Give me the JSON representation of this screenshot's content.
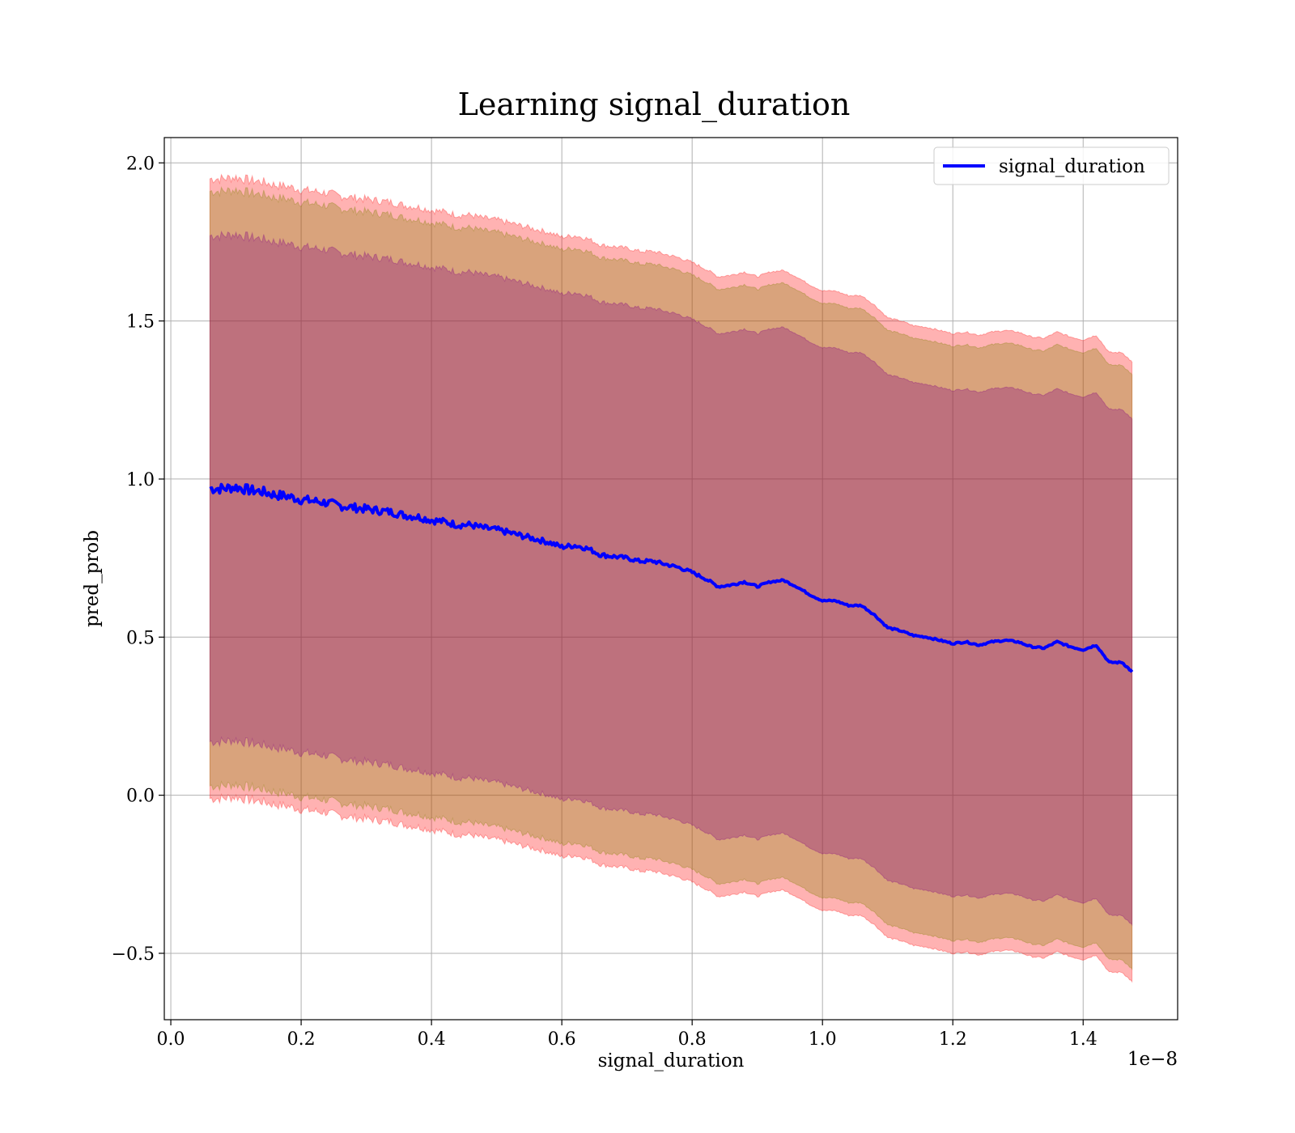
{
  "chart_data": {
    "type": "line",
    "title": "Learning signal_duration",
    "xlabel": "signal_duration",
    "ylabel": "pred_prob",
    "x_offset_text": "1e−8",
    "xlim": [
      -0.01,
      1.545
    ],
    "ylim": [
      -0.71,
      2.08
    ],
    "x_ticks": [
      0.0,
      0.2,
      0.4,
      0.6,
      0.8,
      1.0,
      1.2,
      1.4
    ],
    "x_tick_labels": [
      "0.0",
      "0.2",
      "0.4",
      "0.6",
      "0.8",
      "1.0",
      "1.2",
      "1.4"
    ],
    "y_ticks": [
      -0.5,
      0.0,
      0.5,
      1.0,
      1.5,
      2.0
    ],
    "y_tick_labels": [
      "−0.5",
      "0.0",
      "0.5",
      "1.0",
      "1.5",
      "2.0"
    ],
    "grid": true,
    "legend_position": "upper right",
    "colors": {
      "line": "#0000ff",
      "band_outer": "#ff0000",
      "band_middle": "#808000",
      "band_inner": "#800080"
    },
    "series": [
      {
        "name": "signal_duration",
        "x": [
          0.06,
          0.08,
          0.1,
          0.12,
          0.14,
          0.16,
          0.18,
          0.2,
          0.22,
          0.24,
          0.26,
          0.28,
          0.3,
          0.32,
          0.34,
          0.36,
          0.38,
          0.4,
          0.42,
          0.44,
          0.46,
          0.48,
          0.5,
          0.52,
          0.54,
          0.56,
          0.58,
          0.6,
          0.62,
          0.64,
          0.66,
          0.68,
          0.7,
          0.72,
          0.74,
          0.76,
          0.78,
          0.8,
          0.82,
          0.84,
          0.86,
          0.88,
          0.9,
          0.92,
          0.94,
          0.96,
          0.98,
          1.0,
          1.02,
          1.04,
          1.06,
          1.08,
          1.1,
          1.12,
          1.14,
          1.16,
          1.18,
          1.2,
          1.22,
          1.24,
          1.26,
          1.28,
          1.3,
          1.32,
          1.34,
          1.36,
          1.38,
          1.4,
          1.42,
          1.44,
          1.46,
          1.475
        ],
        "y": [
          0.97,
          0.97,
          0.975,
          0.965,
          0.96,
          0.95,
          0.945,
          0.935,
          0.93,
          0.925,
          0.915,
          0.91,
          0.905,
          0.9,
          0.895,
          0.885,
          0.88,
          0.87,
          0.865,
          0.855,
          0.855,
          0.845,
          0.84,
          0.83,
          0.82,
          0.81,
          0.8,
          0.785,
          0.79,
          0.78,
          0.76,
          0.755,
          0.75,
          0.74,
          0.74,
          0.73,
          0.72,
          0.705,
          0.685,
          0.66,
          0.665,
          0.675,
          0.66,
          0.675,
          0.68,
          0.66,
          0.635,
          0.615,
          0.615,
          0.6,
          0.6,
          0.57,
          0.53,
          0.52,
          0.505,
          0.5,
          0.49,
          0.48,
          0.485,
          0.475,
          0.485,
          0.49,
          0.485,
          0.47,
          0.465,
          0.485,
          0.47,
          0.46,
          0.475,
          0.42,
          0.42,
          0.39
        ]
      }
    ],
    "bands": [
      {
        "color": "outer",
        "half_width": 0.98
      },
      {
        "color": "middle",
        "half_width": 0.94
      },
      {
        "color": "inner",
        "half_width": 0.8
      }
    ]
  }
}
